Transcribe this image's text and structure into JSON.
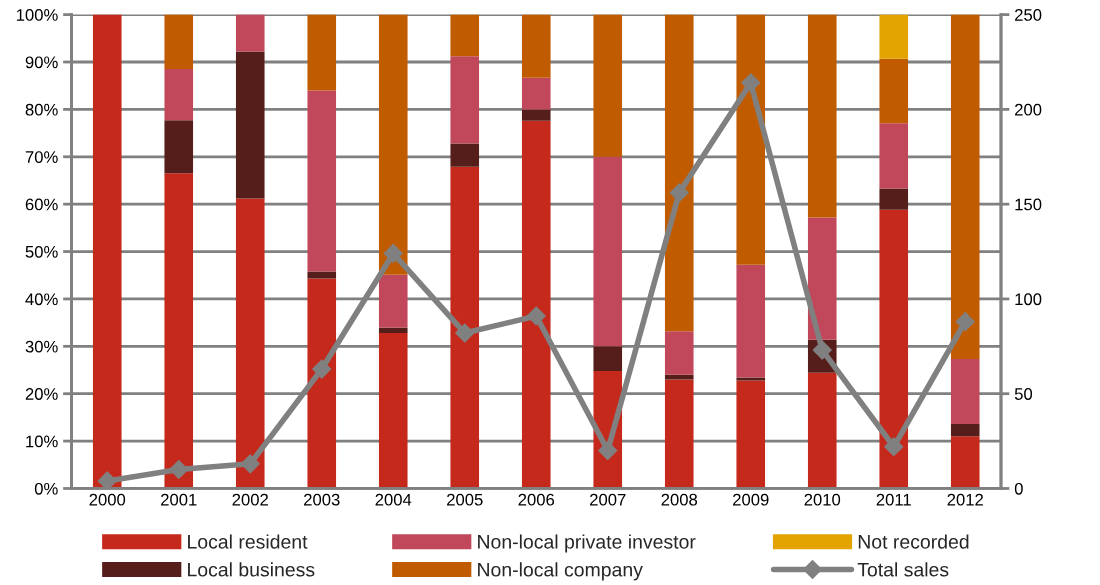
{
  "chart_data": {
    "type": "bar",
    "stacked": true,
    "categories": [
      "2000",
      "2001",
      "2002",
      "2003",
      "2004",
      "2005",
      "2006",
      "2007",
      "2008",
      "2009",
      "2010",
      "2011",
      "2012"
    ],
    "series": [
      {
        "name": "Local resident",
        "color": "#c5291c",
        "values": [
          100,
          66.5,
          61.2,
          44.3,
          32.8,
          67.9,
          77.6,
          24.8,
          23,
          22.8,
          24.4,
          58.8,
          11
        ]
      },
      {
        "name": "Local business",
        "color": "#561e1b",
        "values": [
          0,
          11.2,
          31,
          1.5,
          1.1,
          4.9,
          2.4,
          5.2,
          1,
          0.6,
          7,
          4.5,
          2.6
        ]
      },
      {
        "name": "Non-local private investor",
        "color": "#c0485a",
        "values": [
          0,
          10.8,
          7.8,
          38.2,
          11.2,
          18.4,
          6.7,
          40,
          9.2,
          23.8,
          25.8,
          13.8,
          13.7
        ]
      },
      {
        "name": "Non-local company",
        "color": "#c05b00",
        "values": [
          0,
          11.5,
          0,
          16,
          54.9,
          8.8,
          13.3,
          30,
          66.8,
          52.8,
          42.8,
          13.6,
          72.7
        ]
      },
      {
        "name": "Not recorded",
        "color": "#e3a300",
        "values": [
          0,
          0,
          0,
          0,
          0,
          0,
          0,
          0,
          0,
          0,
          0,
          9.3,
          0
        ]
      },
      {
        "name": "Total sales",
        "type": "line",
        "axis": "y2",
        "color": "#808080",
        "marker": "diamond",
        "values": [
          4,
          10,
          13,
          63,
          124,
          82,
          91,
          20,
          156,
          214,
          73,
          22,
          88
        ]
      }
    ],
    "ylim": [
      0,
      100
    ],
    "yticks": [
      {
        "value": 0,
        "label": "0%"
      },
      {
        "value": 10,
        "label": "10%"
      },
      {
        "value": 20,
        "label": "20%"
      },
      {
        "value": 30,
        "label": "30%"
      },
      {
        "value": 40,
        "label": "40%"
      },
      {
        "value": 50,
        "label": "50%"
      },
      {
        "value": 60,
        "label": "60%"
      },
      {
        "value": 70,
        "label": "70%"
      },
      {
        "value": 80,
        "label": "80%"
      },
      {
        "value": 90,
        "label": "90%"
      },
      {
        "value": 100,
        "label": "100%"
      }
    ],
    "y2lim": [
      0,
      250
    ],
    "y2ticks": [
      0,
      50,
      100,
      150,
      200,
      250
    ],
    "grid": "y",
    "legend": "bottom"
  }
}
